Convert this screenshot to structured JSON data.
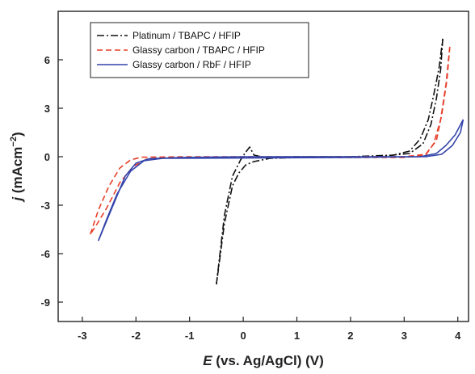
{
  "chart_data": {
    "type": "line",
    "xlabel": {
      "symbol": "E",
      "rest": " (vs. Ag/AgCl) (V)"
    },
    "ylabel": {
      "symbol": "j",
      "rest": " (mAcm",
      "sup": "−2",
      "close": ")"
    },
    "xlim": [
      -3.45,
      4.2
    ],
    "ylim": [
      -10.2,
      9.0
    ],
    "xticks": [
      -3,
      -2,
      -1,
      0,
      1,
      2,
      3,
      4
    ],
    "yticks": [
      -9,
      -6,
      -3,
      0,
      3,
      6
    ],
    "grid": false,
    "legend_position": "top-left",
    "series": [
      {
        "name": "Platinum / TBAPC / HFIP",
        "color": "#111111",
        "dash": "9 3 2 3",
        "loops": [
          [
            [
              -0.5,
              -7.9
            ],
            [
              -0.35,
              -3.6
            ],
            [
              -0.2,
              -1.2
            ],
            [
              -0.05,
              -0.2
            ],
            [
              0.05,
              0.3
            ],
            [
              0.12,
              0.6
            ],
            [
              0.2,
              0.1
            ],
            [
              0.4,
              -0.05
            ],
            [
              1.0,
              0.0
            ],
            [
              2.0,
              0.0
            ],
            [
              2.8,
              0.1
            ],
            [
              3.1,
              0.35
            ],
            [
              3.3,
              1.1
            ],
            [
              3.45,
              2.3
            ],
            [
              3.55,
              3.8
            ],
            [
              3.65,
              5.5
            ],
            [
              3.72,
              7.3
            ]
          ],
          [
            [
              3.72,
              7.3
            ],
            [
              3.68,
              5.4
            ],
            [
              3.6,
              3.6
            ],
            [
              3.5,
              2.0
            ],
            [
              3.35,
              0.8
            ],
            [
              3.1,
              0.2
            ],
            [
              2.5,
              0.0
            ],
            [
              1.0,
              -0.05
            ],
            [
              0.5,
              -0.1
            ],
            [
              0.2,
              -0.3
            ],
            [
              0.05,
              -0.5
            ],
            [
              -0.08,
              -1.0
            ],
            [
              -0.2,
              -1.8
            ],
            [
              -0.35,
              -4.1
            ],
            [
              -0.5,
              -7.9
            ]
          ]
        ]
      },
      {
        "name": "Glassy carbon / TBAPC / HFIP",
        "color": "#e8402a",
        "dash": "7 4",
        "loops": [
          [
            [
              -2.85,
              -4.8
            ],
            [
              -2.7,
              -3.3
            ],
            [
              -2.5,
              -1.8
            ],
            [
              -2.3,
              -0.7
            ],
            [
              -2.1,
              -0.2
            ],
            [
              -1.9,
              -0.03
            ],
            [
              -1.0,
              0.0
            ],
            [
              1.0,
              0.0
            ],
            [
              3.0,
              0.0
            ],
            [
              3.4,
              0.15
            ],
            [
              3.6,
              1.0
            ],
            [
              3.7,
              2.6
            ],
            [
              3.8,
              4.8
            ],
            [
              3.85,
              6.8
            ]
          ],
          [
            [
              3.85,
              6.8
            ],
            [
              3.78,
              4.5
            ],
            [
              3.68,
              2.3
            ],
            [
              3.55,
              0.8
            ],
            [
              3.4,
              0.1
            ],
            [
              3.0,
              -0.05
            ],
            [
              1.0,
              -0.05
            ],
            [
              -1.5,
              -0.05
            ],
            [
              -1.8,
              -0.15
            ],
            [
              -2.05,
              -0.6
            ],
            [
              -2.3,
              -1.6
            ],
            [
              -2.55,
              -3.2
            ],
            [
              -2.75,
              -4.3
            ],
            [
              -2.85,
              -4.8
            ]
          ]
        ]
      },
      {
        "name": "Glassy carbon / RbF / HFIP",
        "color": "#3344aa",
        "dash": "",
        "loops": [
          [
            [
              -2.7,
              -5.2
            ],
            [
              -2.45,
              -3.2
            ],
            [
              -2.2,
              -1.2
            ],
            [
              -2.0,
              -0.4
            ],
            [
              -1.75,
              -0.12
            ],
            [
              -1.2,
              -0.05
            ],
            [
              0.0,
              0.0
            ],
            [
              2.0,
              0.0
            ],
            [
              3.4,
              0.0
            ],
            [
              3.7,
              0.15
            ],
            [
              3.9,
              0.7
            ],
            [
              4.05,
              1.5
            ],
            [
              4.1,
              2.3
            ]
          ],
          [
            [
              4.1,
              2.3
            ],
            [
              3.95,
              1.35
            ],
            [
              3.78,
              0.7
            ],
            [
              3.6,
              0.2
            ],
            [
              3.3,
              0.0
            ],
            [
              2.0,
              -0.05
            ],
            [
              -1.5,
              -0.1
            ],
            [
              -1.85,
              -0.25
            ],
            [
              -2.1,
              -0.9
            ],
            [
              -2.35,
              -2.3
            ],
            [
              -2.55,
              -3.9
            ],
            [
              -2.7,
              -5.2
            ]
          ]
        ]
      }
    ]
  }
}
